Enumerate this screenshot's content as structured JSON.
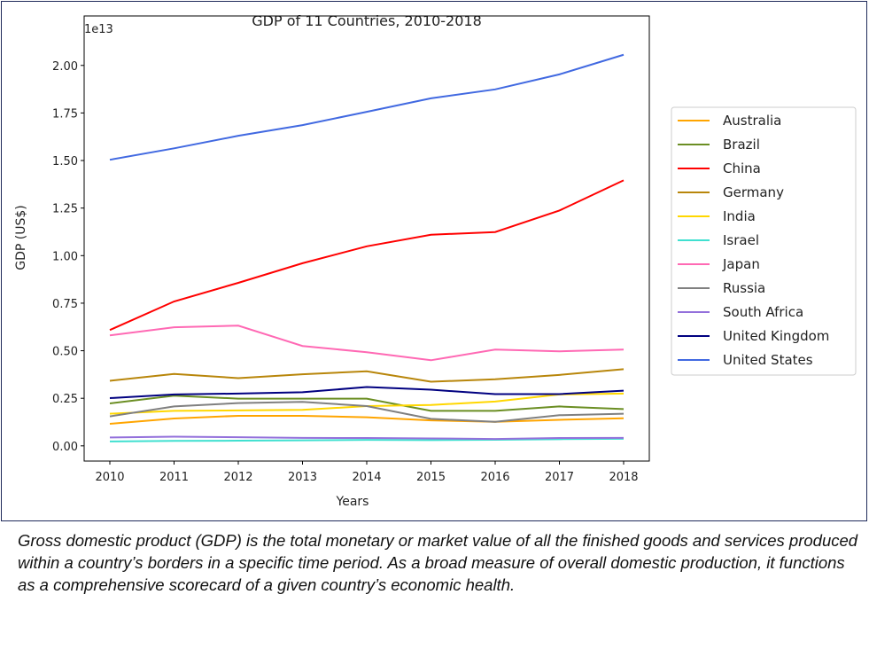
{
  "chart_data": {
    "type": "line",
    "title": "GDP of 11 Countries, 2010-2018",
    "xlabel": "Years",
    "ylabel": "GDP (US$)",
    "y_offset_label": "1e13",
    "x": [
      2010,
      2011,
      2012,
      2013,
      2014,
      2015,
      2016,
      2017,
      2018
    ],
    "x_ticks": [
      "2010",
      "2011",
      "2012",
      "2013",
      "2014",
      "2015",
      "2016",
      "2017",
      "2018"
    ],
    "y_ticks": [
      "0.00",
      "0.25",
      "0.50",
      "0.75",
      "1.00",
      "1.25",
      "1.50",
      "1.75",
      "2.00"
    ],
    "y_tick_values": [
      0,
      0.25,
      0.5,
      0.75,
      1.0,
      1.25,
      1.5,
      1.75,
      2.0
    ],
    "ylim": [
      -0.08,
      2.26
    ],
    "xlim": [
      2009.6,
      2018.4
    ],
    "units": "x 1e13 US$",
    "grid": false,
    "legend_position": "right",
    "series": [
      {
        "name": "Australia",
        "color": "#FFA500",
        "values": [
          0.116,
          0.144,
          0.158,
          0.158,
          0.15,
          0.134,
          0.126,
          0.137,
          0.145
        ]
      },
      {
        "name": "Brazil",
        "color": "#6B8E23",
        "values": [
          0.223,
          0.264,
          0.248,
          0.248,
          0.248,
          0.184,
          0.184,
          0.207,
          0.193
        ]
      },
      {
        "name": "China",
        "color": "#FF0000",
        "values": [
          0.609,
          0.759,
          0.857,
          0.96,
          1.049,
          1.11,
          1.124,
          1.237,
          1.396
        ]
      },
      {
        "name": "Germany",
        "color": "#B8860B",
        "values": [
          0.342,
          0.378,
          0.356,
          0.376,
          0.392,
          0.337,
          0.35,
          0.373,
          0.403
        ]
      },
      {
        "name": "India",
        "color": "#FFD700",
        "values": [
          0.169,
          0.184,
          0.186,
          0.189,
          0.209,
          0.215,
          0.233,
          0.27,
          0.275
        ]
      },
      {
        "name": "Israel",
        "color": "#40E0D0",
        "values": [
          0.023,
          0.026,
          0.027,
          0.029,
          0.031,
          0.03,
          0.032,
          0.035,
          0.037
        ]
      },
      {
        "name": "Japan",
        "color": "#FF69B4",
        "values": [
          0.581,
          0.623,
          0.632,
          0.525,
          0.492,
          0.45,
          0.506,
          0.497,
          0.506
        ]
      },
      {
        "name": "Russia",
        "color": "#808080",
        "values": [
          0.155,
          0.207,
          0.225,
          0.231,
          0.209,
          0.142,
          0.126,
          0.161,
          0.169
        ]
      },
      {
        "name": "South Africa",
        "color": "#9370DB",
        "values": [
          0.044,
          0.048,
          0.045,
          0.042,
          0.041,
          0.039,
          0.036,
          0.041,
          0.042
        ]
      },
      {
        "name": "United Kingdom",
        "color": "#000080",
        "values": [
          0.251,
          0.27,
          0.275,
          0.282,
          0.309,
          0.295,
          0.272,
          0.272,
          0.29
        ]
      },
      {
        "name": "United States",
        "color": "#4169E1",
        "values": [
          1.504,
          1.564,
          1.63,
          1.686,
          1.756,
          1.827,
          1.874,
          1.953,
          2.056
        ]
      }
    ]
  },
  "caption": "Gross domestic product (GDP) is the total monetary or market value of all the finished goods and services produced within a country’s borders in a specific time period. As a broad measure of overall domestic production, it functions as a comprehensive scorecard of a given country’s economic health."
}
